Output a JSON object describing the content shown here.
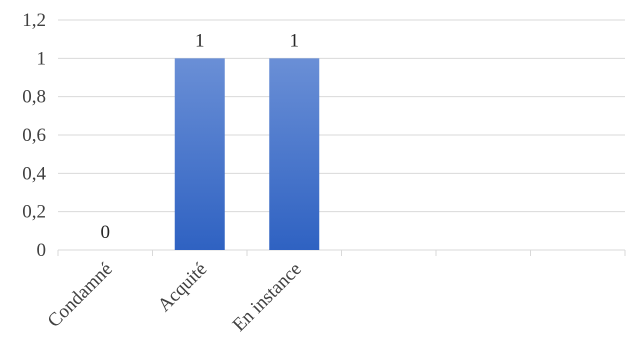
{
  "chart_data": {
    "type": "bar",
    "categories": [
      "Condamné",
      "Acquité",
      "En instance",
      "",
      "",
      ""
    ],
    "values": [
      0,
      1,
      1,
      null,
      null,
      null
    ],
    "data_labels": [
      "0",
      "1",
      "1",
      "",
      "",
      ""
    ],
    "y_ticks": [
      "0",
      "0,2",
      "0,4",
      "0,6",
      "0,8",
      "1",
      "1,2"
    ],
    "ylim": [
      0,
      1.2
    ],
    "grid": true,
    "legend": "none",
    "bar_color_top": "#6a8fd6",
    "bar_color_bottom": "#2f62c2"
  }
}
